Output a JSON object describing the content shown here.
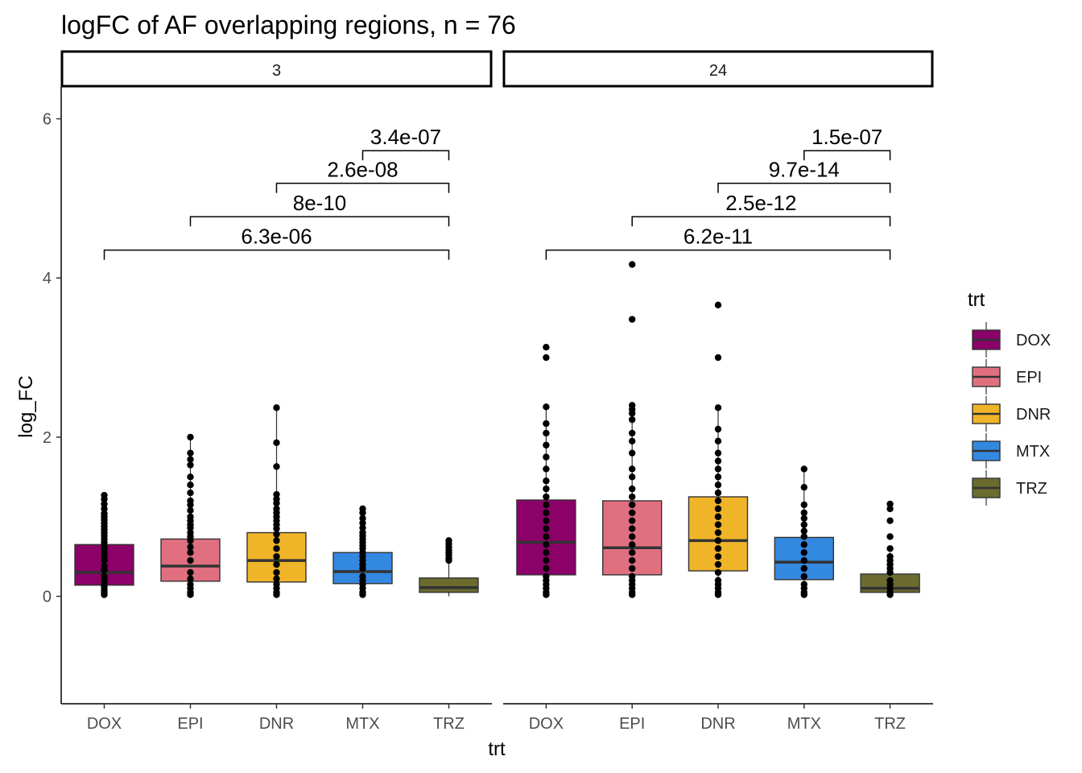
{
  "chart_data": {
    "type": "box",
    "title": "logFC of AF overlapping regions, n = 76",
    "xlabel": "trt",
    "ylabel": "log_FC",
    "ylim": [
      -1.35,
      6.4
    ],
    "yticks": [
      0,
      2,
      4,
      6
    ],
    "grid": false,
    "legend": {
      "title": "trt",
      "position": "right",
      "items": [
        {
          "label": "DOX",
          "color": "#8B0069"
        },
        {
          "label": "EPI",
          "color": "#E07080"
        },
        {
          "label": "DNR",
          "color": "#F0B429"
        },
        {
          "label": "MTX",
          "color": "#3388E0"
        },
        {
          "label": "TRZ",
          "color": "#6B6B30"
        }
      ]
    },
    "categories": [
      "DOX",
      "EPI",
      "DNR",
      "MTX",
      "TRZ"
    ],
    "panels": [
      {
        "label": "3",
        "boxes": [
          {
            "trt": "DOX",
            "q1": 0.14,
            "median": 0.3,
            "q3": 0.65,
            "whisker_low": 0.0,
            "whisker_high": 1.28,
            "outliers": [
              0.02,
              0.05,
              0.08,
              0.12,
              0.16,
              0.2,
              0.25,
              0.33,
              0.38,
              0.45,
              0.5,
              0.55,
              0.6,
              0.64,
              0.68,
              0.72,
              0.76,
              0.8,
              0.84,
              0.88,
              0.92,
              0.96,
              1.0,
              1.04,
              1.1,
              1.16,
              1.22,
              1.27
            ]
          },
          {
            "trt": "EPI",
            "q1": 0.19,
            "median": 0.38,
            "q3": 0.72,
            "whisker_low": 0.0,
            "whisker_high": 2.0,
            "outliers": [
              0.02,
              0.05,
              0.1,
              0.15,
              0.22,
              0.3,
              0.45,
              0.55,
              0.62,
              0.7,
              0.75,
              0.8,
              0.86,
              0.9,
              0.95,
              1.0,
              1.08,
              1.15,
              1.2,
              1.3,
              1.4,
              1.5,
              1.65,
              1.72,
              1.8,
              2.0
            ]
          },
          {
            "trt": "DNR",
            "q1": 0.18,
            "median": 0.45,
            "q3": 0.8,
            "whisker_low": 0.0,
            "whisker_high": 2.37,
            "outliers": [
              0.02,
              0.05,
              0.1,
              0.15,
              0.22,
              0.3,
              0.4,
              0.5,
              0.6,
              0.7,
              0.78,
              0.85,
              0.9,
              0.95,
              1.0,
              1.05,
              1.1,
              1.17,
              1.22,
              1.28,
              1.63,
              1.93,
              2.37
            ]
          },
          {
            "trt": "MTX",
            "q1": 0.16,
            "median": 0.31,
            "q3": 0.55,
            "whisker_low": 0.0,
            "whisker_high": 1.1,
            "outliers": [
              0.02,
              0.05,
              0.1,
              0.15,
              0.2,
              0.25,
              0.35,
              0.4,
              0.45,
              0.5,
              0.55,
              0.6,
              0.64,
              0.68,
              0.72,
              0.76,
              0.8,
              0.86,
              0.92,
              0.98,
              1.05,
              1.1
            ]
          },
          {
            "trt": "TRZ",
            "q1": 0.05,
            "median": 0.11,
            "q3": 0.23,
            "whisker_low": 0.0,
            "whisker_high": 0.42,
            "outliers": [
              0.45,
              0.48,
              0.52,
              0.55,
              0.58,
              0.62,
              0.66,
              0.7
            ]
          }
        ],
        "comparisons": [
          {
            "from": "DOX",
            "to": "TRZ",
            "p": "6.3e-06",
            "y": 4.35
          },
          {
            "from": "EPI",
            "to": "TRZ",
            "p": "8e-10",
            "y": 4.77
          },
          {
            "from": "DNR",
            "to": "TRZ",
            "p": "2.6e-08",
            "y": 5.19
          },
          {
            "from": "MTX",
            "to": "TRZ",
            "p": "3.4e-07",
            "y": 5.6
          }
        ]
      },
      {
        "label": "24",
        "boxes": [
          {
            "trt": "DOX",
            "q1": 0.27,
            "median": 0.68,
            "q3": 1.21,
            "whisker_low": 0.0,
            "whisker_high": 2.38,
            "outliers": [
              0.02,
              0.05,
              0.1,
              0.15,
              0.2,
              0.25,
              0.35,
              0.45,
              0.55,
              0.65,
              0.75,
              0.85,
              0.95,
              1.05,
              1.15,
              1.25,
              1.35,
              1.45,
              1.6,
              1.75,
              1.9,
              2.05,
              2.17,
              2.38,
              3.0,
              3.13
            ]
          },
          {
            "trt": "EPI",
            "q1": 0.27,
            "median": 0.61,
            "q3": 1.2,
            "whisker_low": 0.0,
            "whisker_high": 2.4,
            "outliers": [
              0.02,
              0.05,
              0.1,
              0.15,
              0.2,
              0.25,
              0.35,
              0.45,
              0.55,
              0.65,
              0.75,
              0.85,
              0.95,
              1.05,
              1.15,
              1.25,
              1.35,
              1.5,
              1.6,
              1.8,
              1.95,
              2.05,
              2.22,
              2.3,
              2.35,
              2.4,
              3.48,
              4.17
            ]
          },
          {
            "trt": "DNR",
            "q1": 0.32,
            "median": 0.7,
            "q3": 1.25,
            "whisker_low": 0.0,
            "whisker_high": 2.37,
            "outliers": [
              0.02,
              0.05,
              0.1,
              0.15,
              0.2,
              0.3,
              0.4,
              0.5,
              0.6,
              0.7,
              0.8,
              0.9,
              1.0,
              1.1,
              1.2,
              1.3,
              1.4,
              1.5,
              1.6,
              1.7,
              1.8,
              1.95,
              2.1,
              2.37,
              3.0,
              3.66
            ]
          },
          {
            "trt": "MTX",
            "q1": 0.21,
            "median": 0.43,
            "q3": 0.74,
            "whisker_low": 0.0,
            "whisker_high": 1.6,
            "outliers": [
              0.02,
              0.05,
              0.1,
              0.15,
              0.25,
              0.35,
              0.45,
              0.55,
              0.65,
              0.75,
              0.82,
              0.9,
              0.98,
              1.05,
              1.15,
              1.37,
              1.6
            ]
          },
          {
            "trt": "TRZ",
            "q1": 0.05,
            "median": 0.1,
            "q3": 0.28,
            "whisker_low": 0.0,
            "whisker_high": 0.55,
            "outliers": [
              0.02,
              0.05,
              0.1,
              0.15,
              0.2,
              0.3,
              0.35,
              0.4,
              0.45,
              0.5,
              0.6,
              0.75,
              0.95,
              1.1,
              1.16
            ]
          }
        ],
        "comparisons": [
          {
            "from": "DOX",
            "to": "TRZ",
            "p": "6.2e-11",
            "y": 4.35
          },
          {
            "from": "EPI",
            "to": "TRZ",
            "p": "2.5e-12",
            "y": 4.77
          },
          {
            "from": "DNR",
            "to": "TRZ",
            "p": "9.7e-14",
            "y": 5.19
          },
          {
            "from": "MTX",
            "to": "TRZ",
            "p": "1.5e-07",
            "y": 5.6
          }
        ]
      }
    ]
  }
}
